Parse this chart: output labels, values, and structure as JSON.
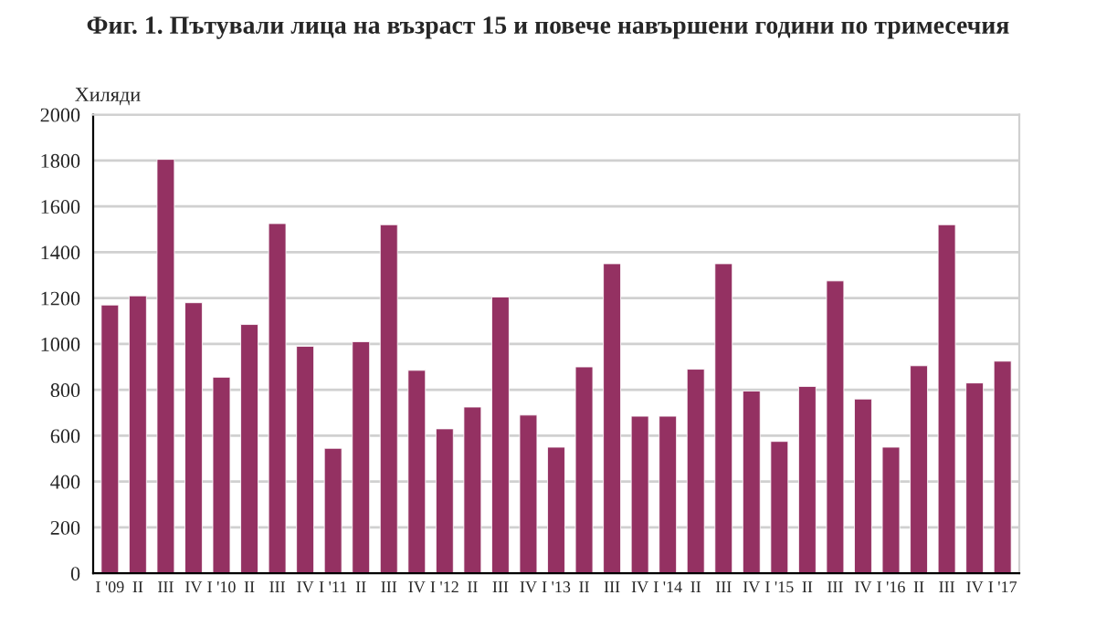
{
  "chart_data": {
    "type": "bar",
    "title": "Фиг. 1. Пътували лица на възраст 15 и повече навършени години по тримесечия",
    "ylabel": "Хиляди",
    "categories": [
      "I '09",
      "II",
      "III",
      "IV",
      "I '10",
      "II",
      "III",
      "IV",
      "I '11",
      "II",
      "III",
      "IV",
      "I '12",
      "II",
      "III",
      "IV",
      "I '13",
      "II",
      "III",
      "IV",
      "I '14",
      "II",
      "III",
      "IV",
      "I '15",
      "II",
      "III",
      "IV",
      "I '16",
      "II",
      "III",
      "IV",
      "I '17"
    ],
    "values": [
      1170,
      1210,
      1805,
      1180,
      855,
      1085,
      1525,
      990,
      545,
      1010,
      1520,
      885,
      630,
      725,
      1205,
      690,
      550,
      900,
      1350,
      685,
      685,
      890,
      1350,
      795,
      575,
      815,
      1275,
      760,
      550,
      905,
      1520,
      830,
      925
    ],
    "color": "#943162",
    "ylim": [
      0,
      2000
    ],
    "yticks": [
      0,
      200,
      400,
      600,
      800,
      1000,
      1200,
      1400,
      1600,
      1800,
      2000
    ],
    "grid": "y",
    "legend": false
  }
}
